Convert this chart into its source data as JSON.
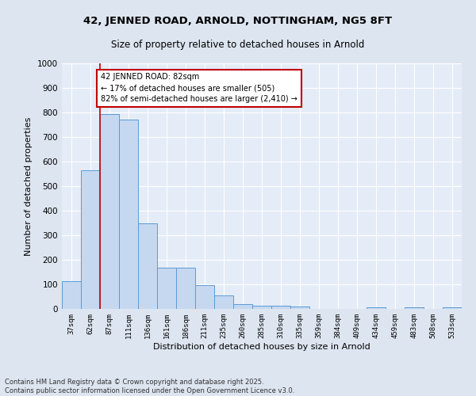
{
  "title_line1": "42, JENNED ROAD, ARNOLD, NOTTINGHAM, NG5 8FT",
  "title_line2": "Size of property relative to detached houses in Arnold",
  "xlabel": "Distribution of detached houses by size in Arnold",
  "ylabel": "Number of detached properties",
  "categories": [
    "37sqm",
    "62sqm",
    "87sqm",
    "111sqm",
    "136sqm",
    "161sqm",
    "186sqm",
    "211sqm",
    "235sqm",
    "260sqm",
    "285sqm",
    "310sqm",
    "335sqm",
    "359sqm",
    "384sqm",
    "409sqm",
    "434sqm",
    "459sqm",
    "483sqm",
    "508sqm",
    "533sqm"
  ],
  "values": [
    112,
    565,
    793,
    770,
    350,
    167,
    167,
    98,
    54,
    20,
    14,
    14,
    9,
    0,
    0,
    0,
    5,
    0,
    5,
    0,
    5
  ],
  "bar_color": "#c5d8f0",
  "bar_edge_color": "#5b9bd5",
  "vline_color": "#c00000",
  "annotation_text": "42 JENNED ROAD: 82sqm\n← 17% of detached houses are smaller (505)\n82% of semi-detached houses are larger (2,410) →",
  "annotation_box_facecolor": "#ffffff",
  "annotation_box_edgecolor": "#c00000",
  "ylim": [
    0,
    1000
  ],
  "yticks": [
    0,
    100,
    200,
    300,
    400,
    500,
    600,
    700,
    800,
    900,
    1000
  ],
  "background_color": "#dde5f0",
  "plot_bg_color": "#e4ecf7",
  "grid_color": "#ffffff",
  "footnote_line1": "Contains HM Land Registry data © Crown copyright and database right 2025.",
  "footnote_line2": "Contains public sector information licensed under the Open Government Licence v3.0."
}
